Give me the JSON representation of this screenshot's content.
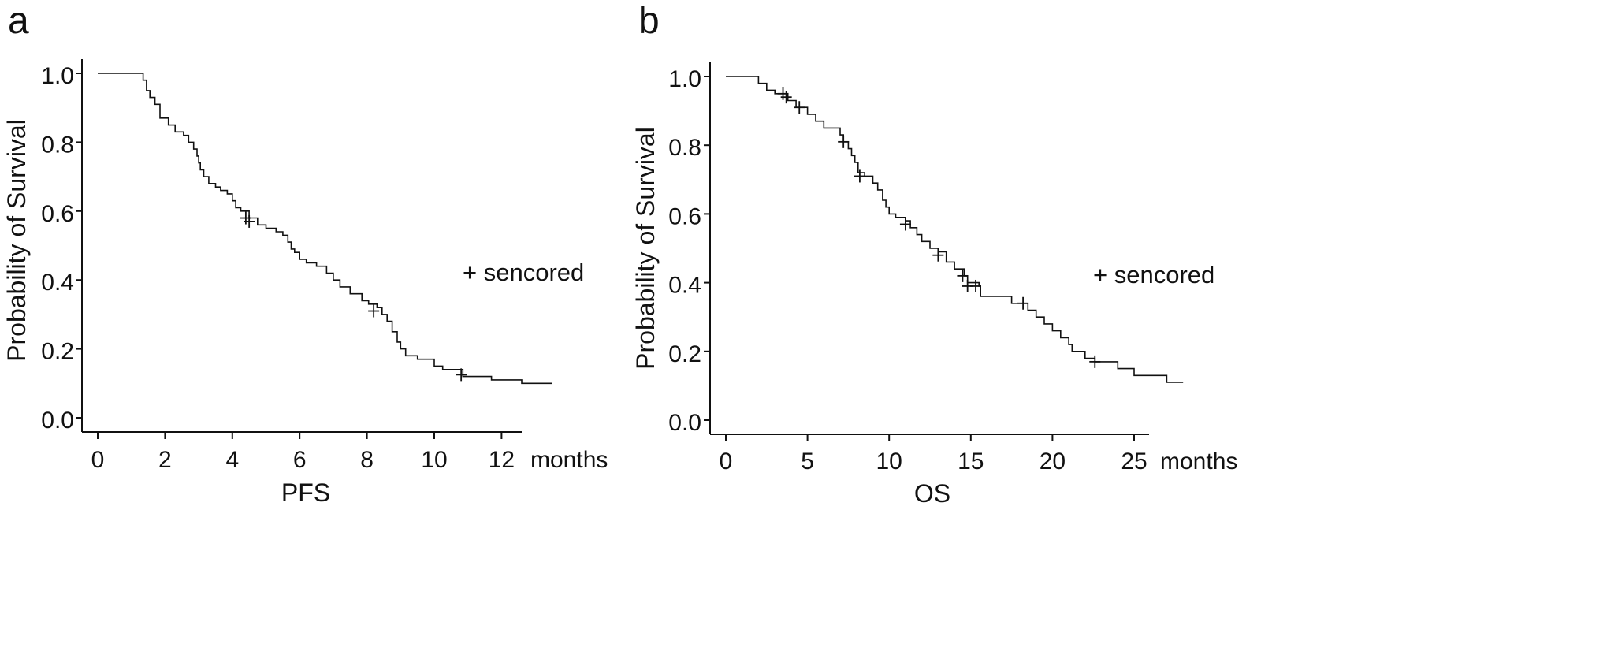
{
  "chart_data": [
    {
      "type": "line",
      "subtype": "kaplan-meier",
      "panel_label": "a",
      "xlabel": "PFS",
      "x_unit_label": "months",
      "ylabel": "Probability of Survival",
      "xlim": [
        0,
        12.5
      ],
      "ylim": [
        0,
        1
      ],
      "x_ticks": [
        0,
        2,
        4,
        6,
        8,
        10,
        12
      ],
      "x_tick_labels": [
        "0",
        "2",
        "4",
        "6",
        "8",
        "10",
        "12"
      ],
      "y_ticks": [
        0.0,
        0.2,
        0.4,
        0.6,
        0.8,
        1.0
      ],
      "y_tick_labels": [
        "0.0",
        "0.2",
        "0.4",
        "0.6",
        "0.8",
        "1.0"
      ],
      "legend_text": "+ sencored",
      "legend_position": "right",
      "grid": false,
      "steps": [
        [
          0,
          1.0
        ],
        [
          1.35,
          0.98
        ],
        [
          1.45,
          0.95
        ],
        [
          1.55,
          0.93
        ],
        [
          1.7,
          0.91
        ],
        [
          1.85,
          0.87
        ],
        [
          2.1,
          0.85
        ],
        [
          2.3,
          0.83
        ],
        [
          2.55,
          0.82
        ],
        [
          2.7,
          0.8
        ],
        [
          2.85,
          0.78
        ],
        [
          2.95,
          0.76
        ],
        [
          3.0,
          0.74
        ],
        [
          3.05,
          0.72
        ],
        [
          3.15,
          0.7
        ],
        [
          3.3,
          0.68
        ],
        [
          3.5,
          0.67
        ],
        [
          3.65,
          0.66
        ],
        [
          3.85,
          0.65
        ],
        [
          4.0,
          0.63
        ],
        [
          4.1,
          0.61
        ],
        [
          4.25,
          0.6
        ],
        [
          4.5,
          0.58
        ],
        [
          4.75,
          0.56
        ],
        [
          5.0,
          0.55
        ],
        [
          5.3,
          0.54
        ],
        [
          5.5,
          0.53
        ],
        [
          5.65,
          0.51
        ],
        [
          5.75,
          0.49
        ],
        [
          5.85,
          0.48
        ],
        [
          6.0,
          0.46
        ],
        [
          6.2,
          0.45
        ],
        [
          6.5,
          0.44
        ],
        [
          6.8,
          0.42
        ],
        [
          7.0,
          0.4
        ],
        [
          7.2,
          0.38
        ],
        [
          7.5,
          0.36
        ],
        [
          7.85,
          0.34
        ],
        [
          8.05,
          0.33
        ],
        [
          8.3,
          0.32
        ],
        [
          8.45,
          0.3
        ],
        [
          8.6,
          0.28
        ],
        [
          8.75,
          0.25
        ],
        [
          8.9,
          0.22
        ],
        [
          9.0,
          0.2
        ],
        [
          9.15,
          0.18
        ],
        [
          9.5,
          0.17
        ],
        [
          10.0,
          0.15
        ],
        [
          10.25,
          0.14
        ],
        [
          10.85,
          0.12
        ],
        [
          11.7,
          0.11
        ],
        [
          12.6,
          0.1
        ],
        [
          13.5,
          0.1
        ]
      ],
      "censored": [
        [
          4.4,
          0.58
        ],
        [
          4.5,
          0.57
        ],
        [
          8.2,
          0.31
        ],
        [
          10.8,
          0.125
        ]
      ]
    },
    {
      "type": "line",
      "subtype": "kaplan-meier",
      "panel_label": "b",
      "xlabel": "OS",
      "x_unit_label": "months",
      "ylabel": "Probability of Survival",
      "xlim": [
        0,
        26
      ],
      "ylim": [
        0,
        1
      ],
      "x_ticks": [
        0,
        5,
        10,
        15,
        20,
        25
      ],
      "x_tick_labels": [
        "0",
        "5",
        "10",
        "15",
        "20",
        "25"
      ],
      "y_ticks": [
        0.0,
        0.2,
        0.4,
        0.6,
        0.8,
        1.0
      ],
      "y_tick_labels": [
        "0.0",
        "0.2",
        "0.4",
        "0.6",
        "0.8",
        "1.0"
      ],
      "legend_text": "+ sencored",
      "legend_position": "right",
      "grid": false,
      "steps": [
        [
          0,
          1.0
        ],
        [
          2.0,
          0.98
        ],
        [
          2.5,
          0.96
        ],
        [
          3.0,
          0.95
        ],
        [
          3.8,
          0.93
        ],
        [
          4.3,
          0.91
        ],
        [
          5.0,
          0.89
        ],
        [
          5.5,
          0.87
        ],
        [
          6.0,
          0.85
        ],
        [
          7.0,
          0.83
        ],
        [
          7.2,
          0.81
        ],
        [
          7.5,
          0.79
        ],
        [
          7.7,
          0.77
        ],
        [
          7.9,
          0.75
        ],
        [
          8.1,
          0.72
        ],
        [
          8.5,
          0.71
        ],
        [
          9.0,
          0.69
        ],
        [
          9.3,
          0.67
        ],
        [
          9.6,
          0.64
        ],
        [
          9.8,
          0.62
        ],
        [
          10.0,
          0.6
        ],
        [
          10.4,
          0.59
        ],
        [
          11.0,
          0.58
        ],
        [
          11.3,
          0.56
        ],
        [
          11.7,
          0.54
        ],
        [
          12.0,
          0.52
        ],
        [
          12.5,
          0.5
        ],
        [
          13.0,
          0.49
        ],
        [
          13.5,
          0.46
        ],
        [
          14.0,
          0.44
        ],
        [
          14.6,
          0.42
        ],
        [
          14.8,
          0.4
        ],
        [
          15.5,
          0.39
        ],
        [
          15.6,
          0.36
        ],
        [
          17.5,
          0.34
        ],
        [
          18.5,
          0.32
        ],
        [
          19.0,
          0.3
        ],
        [
          19.5,
          0.28
        ],
        [
          20.0,
          0.26
        ],
        [
          20.5,
          0.24
        ],
        [
          21.0,
          0.22
        ],
        [
          21.2,
          0.2
        ],
        [
          22.0,
          0.18
        ],
        [
          22.6,
          0.17
        ],
        [
          24.0,
          0.15
        ],
        [
          25.0,
          0.13
        ],
        [
          27.0,
          0.11
        ],
        [
          28.0,
          0.11
        ]
      ],
      "censored": [
        [
          3.5,
          0.95
        ],
        [
          3.7,
          0.94
        ],
        [
          4.5,
          0.91
        ],
        [
          7.2,
          0.81
        ],
        [
          8.2,
          0.71
        ],
        [
          11.0,
          0.57
        ],
        [
          13.0,
          0.48
        ],
        [
          14.5,
          0.42
        ],
        [
          14.8,
          0.39
        ],
        [
          15.3,
          0.39
        ],
        [
          18.2,
          0.34
        ],
        [
          22.6,
          0.17
        ]
      ]
    }
  ]
}
